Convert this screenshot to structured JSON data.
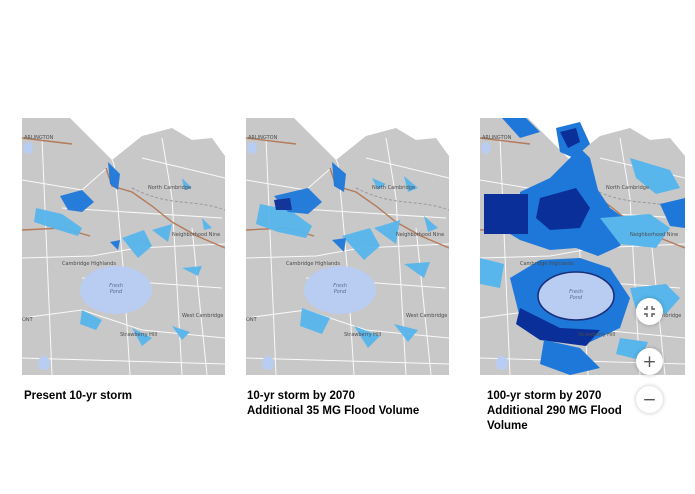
{
  "maps": [
    {
      "caption_lines": [
        "Present 10-yr storm"
      ],
      "labels": {
        "arlington": "ARLINGTON",
        "north_cambridge": "North Cambridge",
        "cambridge_highlands": "Cambridge Highlands",
        "neighborhood_nine": "Neighborhood Nine",
        "fresh_pond": "Fresh Pond",
        "west_cambridge": "West Cambridge",
        "strawberry_hill": "Strawberry Hill",
        "mont": "ONT"
      }
    },
    {
      "caption_lines": [
        "10-yr storm by 2070",
        "Additional 35 MG Flood Volume"
      ],
      "labels": {
        "arlington": "ARLINGTON",
        "north_cambridge": "North Cambridge",
        "cambridge_highlands": "Cambridge Highlands",
        "neighborhood_nine": "Neighborhood Nine",
        "fresh_pond": "Fresh Pond",
        "west_cambridge": "West Cambridge",
        "strawberry_hill": "Strawberry Hill",
        "mont": "ONT"
      }
    },
    {
      "caption_lines": [
        "100-yr storm by 2070",
        "Additional 290 MG Flood",
        "Volume"
      ],
      "labels": {
        "arlington": "ARLINGTON",
        "north_cambridge": "North Cambridge",
        "cambridge_highlands": "Cambridge Highlands",
        "neighborhood_nine": "Neighborhood Nine",
        "fresh_pond": "Fresh Pond",
        "west_cambridge": "West Cambridge",
        "strawberry_hill": "Strawberry Hill",
        "mont": ""
      }
    }
  ],
  "controls": {
    "fit_icon": "collapse-arrows-icon",
    "zoom_in": "+",
    "zoom_out": "−"
  },
  "colors": {
    "land": "#c8c8c8",
    "roads": "#ffffff",
    "pond": "#b9cdf2",
    "flood_shallow": "#58b6ec",
    "flood_medium": "#1e78da",
    "flood_deep": "#0b2f99"
  }
}
